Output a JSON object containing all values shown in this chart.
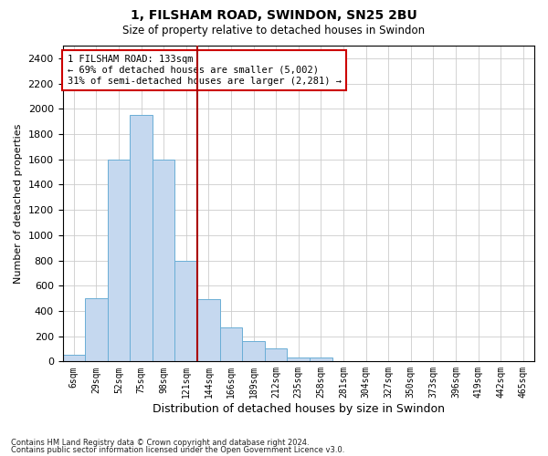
{
  "title1": "1, FILSHAM ROAD, SWINDON, SN25 2BU",
  "title2": "Size of property relative to detached houses in Swindon",
  "xlabel": "Distribution of detached houses by size in Swindon",
  "ylabel": "Number of detached properties",
  "footnote1": "Contains HM Land Registry data © Crown copyright and database right 2024.",
  "footnote2": "Contains public sector information licensed under the Open Government Licence v3.0.",
  "annotation_line1": "1 FILSHAM ROAD: 133sqm",
  "annotation_line2": "← 69% of detached houses are smaller (5,002)",
  "annotation_line3": "31% of semi-detached houses are larger (2,281) →",
  "bar_labels": [
    "6sqm",
    "29sqm",
    "52sqm",
    "75sqm",
    "98sqm",
    "121sqm",
    "144sqm",
    "166sqm",
    "189sqm",
    "212sqm",
    "235sqm",
    "258sqm",
    "281sqm",
    "304sqm",
    "327sqm",
    "350sqm",
    "373sqm",
    "396sqm",
    "419sqm",
    "442sqm",
    "465sqm"
  ],
  "bar_values": [
    50,
    500,
    1600,
    1950,
    1600,
    800,
    490,
    270,
    160,
    100,
    30,
    30,
    0,
    0,
    0,
    0,
    0,
    0,
    0,
    0,
    0
  ],
  "bar_color": "#c5d8ef",
  "bar_edge_color": "#6aaed6",
  "vline_x": 6.0,
  "vline_color": "#aa0000",
  "ylim": [
    0,
    2500
  ],
  "yticks": [
    0,
    200,
    400,
    600,
    800,
    1000,
    1200,
    1400,
    1600,
    1800,
    2000,
    2200,
    2400
  ],
  "annotation_box_color": "#cc0000",
  "background_color": "#ffffff",
  "grid_color": "#cccccc"
}
